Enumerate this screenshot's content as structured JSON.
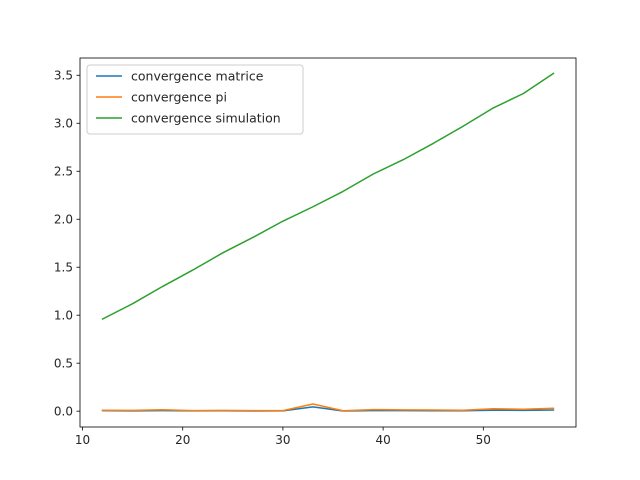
{
  "chart_data": {
    "type": "line",
    "title": "",
    "xlabel": "",
    "ylabel": "",
    "xlim": [
      9.75,
      59.25
    ],
    "ylim": [
      -0.165,
      3.68
    ],
    "x_ticks": [
      10,
      20,
      30,
      40,
      50
    ],
    "y_ticks": [
      0.0,
      0.5,
      1.0,
      1.5,
      2.0,
      2.5,
      3.0,
      3.5
    ],
    "x_tick_labels": [
      "10",
      "20",
      "30",
      "40",
      "50"
    ],
    "y_tick_labels": [
      "0.0",
      "0.5",
      "1.0",
      "1.5",
      "2.0",
      "2.5",
      "3.0",
      "3.5"
    ],
    "x": [
      12,
      15,
      18,
      21,
      24,
      27,
      30,
      33,
      36,
      39,
      42,
      45,
      48,
      51,
      54,
      57
    ],
    "series": [
      {
        "name": "convergence matrice",
        "color": "#1f77b4",
        "values": [
          0.005,
          0.003,
          0.006,
          0.003,
          0.004,
          0.002,
          0.003,
          0.045,
          0.002,
          0.006,
          0.006,
          0.005,
          0.004,
          0.01,
          0.008,
          0.012
        ]
      },
      {
        "name": "convergence pi",
        "color": "#ff7f0e",
        "values": [
          0.01,
          0.008,
          0.015,
          0.006,
          0.008,
          0.006,
          0.006,
          0.075,
          0.004,
          0.016,
          0.014,
          0.012,
          0.01,
          0.025,
          0.02,
          0.03
        ]
      },
      {
        "name": "convergence simulation",
        "color": "#2ca02c",
        "values": [
          0.96,
          1.12,
          1.3,
          1.47,
          1.65,
          1.81,
          1.98,
          2.13,
          2.29,
          2.47,
          2.62,
          2.79,
          2.97,
          3.16,
          3.31,
          3.52
        ]
      }
    ],
    "grid": false,
    "legend": "top-left"
  }
}
